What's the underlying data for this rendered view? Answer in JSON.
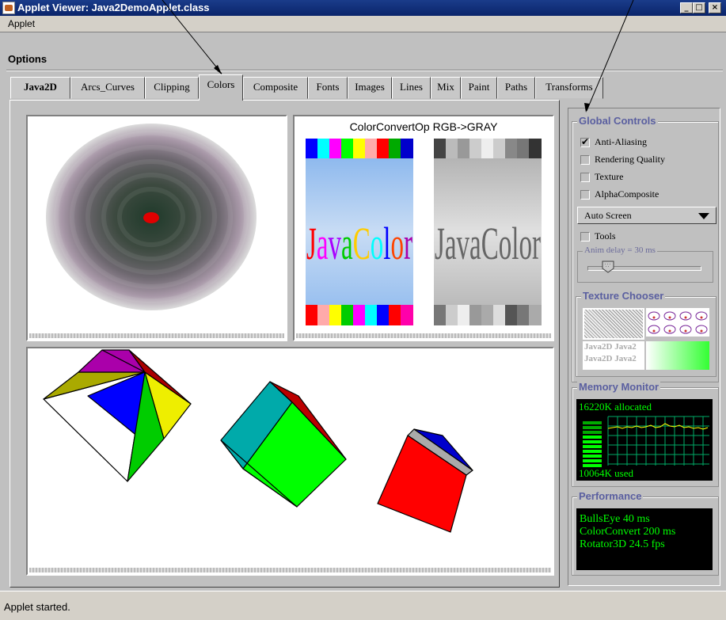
{
  "window": {
    "title": "Applet Viewer: Java2DemoApplet.class",
    "minimize": "_",
    "maximize": "□",
    "close": "×"
  },
  "menu": {
    "applet": "Applet"
  },
  "options": {
    "label": "Options"
  },
  "tabs": [
    {
      "label": "Java2D"
    },
    {
      "label": "Arcs_Curves"
    },
    {
      "label": "Clipping"
    },
    {
      "label": "Colors"
    },
    {
      "label": "Composite"
    },
    {
      "label": "Fonts"
    },
    {
      "label": "Images"
    },
    {
      "label": "Lines"
    },
    {
      "label": "Mix"
    },
    {
      "label": "Paint"
    },
    {
      "label": "Paths"
    },
    {
      "label": "Transforms"
    }
  ],
  "demos": {
    "colorconvert": {
      "title": "ColorConvertOp RGB->GRAY",
      "text": "JavaColor"
    }
  },
  "global_controls": {
    "title": "Global Controls",
    "checkboxes": [
      {
        "label": "Anti-Aliasing",
        "checked": true
      },
      {
        "label": "Rendering Quality",
        "checked": false
      },
      {
        "label": "Texture",
        "checked": false
      },
      {
        "label": "AlphaComposite",
        "checked": false
      }
    ],
    "screen_select": "Auto Screen",
    "tools": "Tools",
    "anim_delay": "Anim delay = 30 ms",
    "anim_delay_value": 0.18
  },
  "texture_chooser": {
    "title": "Texture Chooser",
    "sample_text": "Java2D Java2"
  },
  "memory_monitor": {
    "title": "Memory Monitor",
    "allocated": "16220K allocated",
    "used": "10064K used"
  },
  "performance": {
    "title": "Performance",
    "lines": [
      "BullsEye 40 ms",
      "ColorConvert 200 ms",
      "Rotator3D 24.5 fps"
    ]
  },
  "status": {
    "text": "Applet started."
  },
  "colors": {
    "panel": "#c0c0c0",
    "group_title": "#5a5fa0",
    "monitor_green": "#00ff00"
  }
}
